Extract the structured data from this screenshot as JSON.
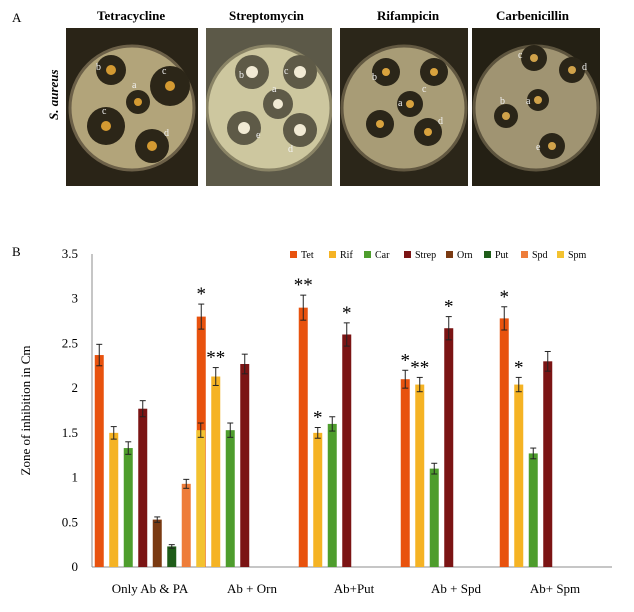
{
  "panel_a": {
    "label": "A",
    "organism": "S. aureus",
    "plates": [
      {
        "title": "Tetracycline",
        "wells": [
          "b",
          "c",
          "a",
          "c",
          "d"
        ]
      },
      {
        "title": "Streptomycin",
        "wells": [
          "b",
          "c",
          "a",
          "e",
          "d"
        ]
      },
      {
        "title": "Rifampicin",
        "wells": [
          "b",
          "c",
          "a",
          "d"
        ]
      },
      {
        "title": "Carbenicillin",
        "wells": [
          "c",
          "d",
          "a",
          "b",
          "e"
        ]
      }
    ]
  },
  "panel_b": {
    "label": "B"
  },
  "chart_data": {
    "type": "bar",
    "ylabel": "Zone of inhibition in Cm",
    "xlabel": "",
    "ylim": [
      0,
      3.5
    ],
    "yticks": [
      "0",
      "0.5",
      "1",
      "1.5",
      "2",
      "2.5",
      "3",
      "3.5"
    ],
    "grid": false,
    "legend_position": "top-right",
    "categories": [
      "Only Ab & PA",
      "Ab + Orn",
      "Ab+Put",
      "Ab + Spd",
      "Ab+ Spm"
    ],
    "series": [
      {
        "name": "Tet",
        "color": "#e8520e",
        "values": [
          2.37,
          2.8,
          2.9,
          2.1,
          2.78
        ],
        "errors": [
          0.12,
          0.14,
          0.14,
          0.1,
          0.13
        ],
        "sig": [
          "",
          "*",
          "**",
          "*",
          "*"
        ]
      },
      {
        "name": "Rif",
        "color": "#f5b324",
        "values": [
          1.5,
          2.13,
          1.5,
          2.04,
          2.04
        ],
        "errors": [
          0.07,
          0.1,
          0.06,
          0.08,
          0.08
        ],
        "sig": [
          "",
          "**",
          "*",
          "**",
          "*"
        ]
      },
      {
        "name": "Car",
        "color": "#4e9d2d",
        "values": [
          1.33,
          1.53,
          1.6,
          1.1,
          1.27
        ],
        "errors": [
          0.07,
          0.08,
          0.08,
          0.06,
          0.06
        ],
        "sig": [
          "",
          "",
          "",
          "",
          ""
        ]
      },
      {
        "name": "Strep",
        "color": "#7b1414",
        "values": [
          1.77,
          2.27,
          2.6,
          2.67,
          2.3
        ],
        "errors": [
          0.09,
          0.11,
          0.13,
          0.13,
          0.11
        ],
        "sig": [
          "",
          "",
          "*",
          "*",
          ""
        ]
      },
      {
        "name": "Orn",
        "color": "#7a3a12",
        "values": [
          0.53,
          null,
          null,
          null,
          null
        ],
        "errors": [
          0.03,
          null,
          null,
          null,
          null
        ],
        "sig": [
          "",
          "",
          "",
          "",
          ""
        ]
      },
      {
        "name": "Put",
        "color": "#1e5c18",
        "values": [
          0.23,
          null,
          null,
          null,
          null
        ],
        "errors": [
          0.02,
          null,
          null,
          null,
          null
        ],
        "sig": [
          "",
          "",
          "",
          "",
          ""
        ]
      },
      {
        "name": "Spd",
        "color": "#ee7d3a",
        "values": [
          0.93,
          null,
          null,
          null,
          null
        ],
        "errors": [
          0.05,
          null,
          null,
          null,
          null
        ],
        "sig": [
          "",
          "",
          "",
          "",
          ""
        ]
      },
      {
        "name": "Spm",
        "color": "#f3c230",
        "values": [
          1.53,
          null,
          null,
          null,
          null
        ],
        "errors": [
          0.08,
          null,
          null,
          null,
          null
        ],
        "sig": [
          "",
          "",
          "",
          "",
          ""
        ]
      }
    ]
  }
}
